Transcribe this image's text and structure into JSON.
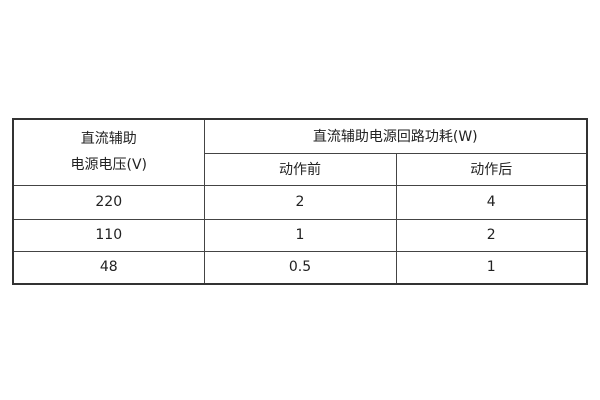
{
  "table": {
    "header": {
      "voltage_line1": "直流辅助",
      "voltage_line2": "电源电压(V)",
      "power_group": "直流辅助电源回路功耗(W)",
      "before": "动作前",
      "after": "动作后"
    },
    "rows": [
      {
        "voltage": "220",
        "before": "2",
        "after": "4"
      },
      {
        "voltage": "110",
        "before": "1",
        "after": "2"
      },
      {
        "voltage": "48",
        "before": "0.5",
        "after": "1"
      }
    ]
  }
}
